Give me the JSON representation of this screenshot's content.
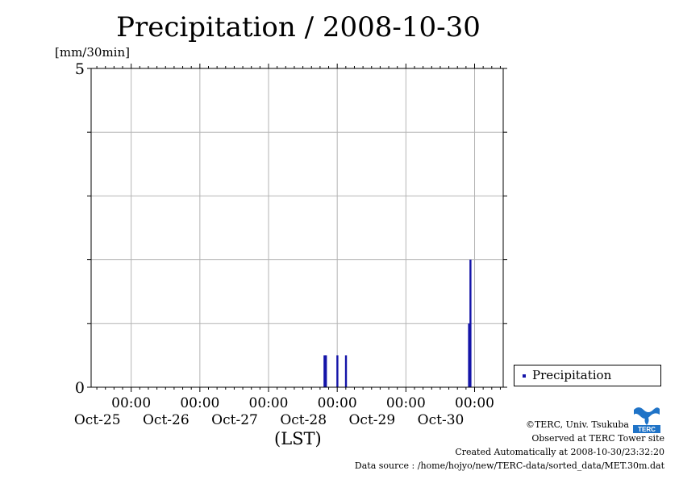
{
  "colors": {
    "series": "#1414a8",
    "grid": "#b4b4b4",
    "axis": "#000000",
    "logo": "#1f73c7"
  },
  "chart_data": {
    "type": "bar",
    "title": "Precipitation / 2008-10-30",
    "ylabel": "[mm/30min]",
    "xlabel": "(LST)",
    "ylim": [
      0,
      5
    ],
    "xlim": [
      "2008-10-24T10:00",
      "2008-10-30T10:00"
    ],
    "y_tick_labels": [
      "5",
      "0"
    ],
    "x_ticks": [
      {
        "time": "2008-10-25T00:00",
        "label_time": "00:00",
        "label_date": "Oct-25"
      },
      {
        "time": "2008-10-26T00:00",
        "label_time": "00:00",
        "label_date": "Oct-26"
      },
      {
        "time": "2008-10-27T00:00",
        "label_time": "00:00",
        "label_date": "Oct-27"
      },
      {
        "time": "2008-10-28T00:00",
        "label_time": "00:00",
        "label_date": "Oct-28"
      },
      {
        "time": "2008-10-29T00:00",
        "label_time": "00:00",
        "label_date": "Oct-29"
      },
      {
        "time": "2008-10-30T00:00",
        "label_time": "00:00",
        "label_date": "Oct-30"
      }
    ],
    "grid": true,
    "legend_position": "right-bottom",
    "series": [
      {
        "name": "Precipitation",
        "points": [
          {
            "time": "2008-10-27T19:30",
            "value": 0.5
          },
          {
            "time": "2008-10-27T20:00",
            "value": 0.5
          },
          {
            "time": "2008-10-28T00:00",
            "value": 0.5
          },
          {
            "time": "2008-10-28T03:00",
            "value": 0.5
          },
          {
            "time": "2008-10-29T22:00",
            "value": 1.0
          },
          {
            "time": "2008-10-29T22:30",
            "value": 2.0
          }
        ]
      }
    ]
  },
  "credits": {
    "copyright": "©TERC, Univ. Tsukuba",
    "observed": "Observed at TERC Tower site",
    "created": "Created Automatically at 2008-10-30/23:32:20",
    "source": "Data source : /home/hojyo/new/TERC-data/sorted_data/MET.30m.dat"
  },
  "logo": {
    "text": "TERC",
    "icon": "terc-logo-icon"
  }
}
